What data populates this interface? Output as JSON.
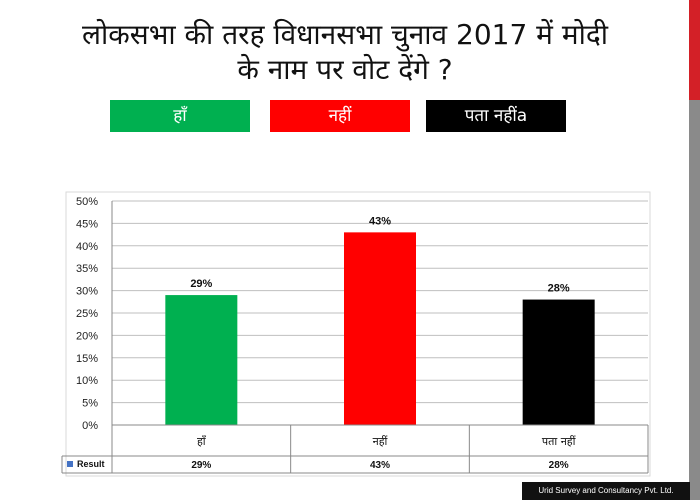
{
  "page": {
    "title_line1": "लोकसभा की तरह विधानसभा चुनाव 2017 में मोदी",
    "title_line2": "के नाम पर वोट देंगे ?",
    "legend_boxes": [
      {
        "label": "हाँ",
        "color": "#00b050"
      },
      {
        "label": "नहीं",
        "color": "#ff0000"
      },
      {
        "label": "पता नहींa",
        "color": "#000000"
      }
    ],
    "footer": "Urid Survey and Consultancy Pvt. Ltd.",
    "accent_colors": {
      "stripe_top": "#d32027",
      "stripe_bottom": "#8a8a8a"
    }
  },
  "chart_data": {
    "type": "bar",
    "categories": [
      "हाँ",
      "नहीं",
      "पता नहीं"
    ],
    "series": [
      {
        "name": "Result",
        "values": [
          29,
          43,
          28
        ],
        "colors": [
          "#00b050",
          "#ff0000",
          "#000000"
        ]
      }
    ],
    "data_labels": [
      "29%",
      "43%",
      "28%"
    ],
    "table_values": [
      "29%",
      "43%",
      "28%"
    ],
    "ylim": [
      0,
      50
    ],
    "y_ticks": [
      "0%",
      "5%",
      "10%",
      "15%",
      "20%",
      "25%",
      "30%",
      "35%",
      "40%",
      "45%",
      "50%"
    ],
    "grid": true,
    "data_table": true
  }
}
